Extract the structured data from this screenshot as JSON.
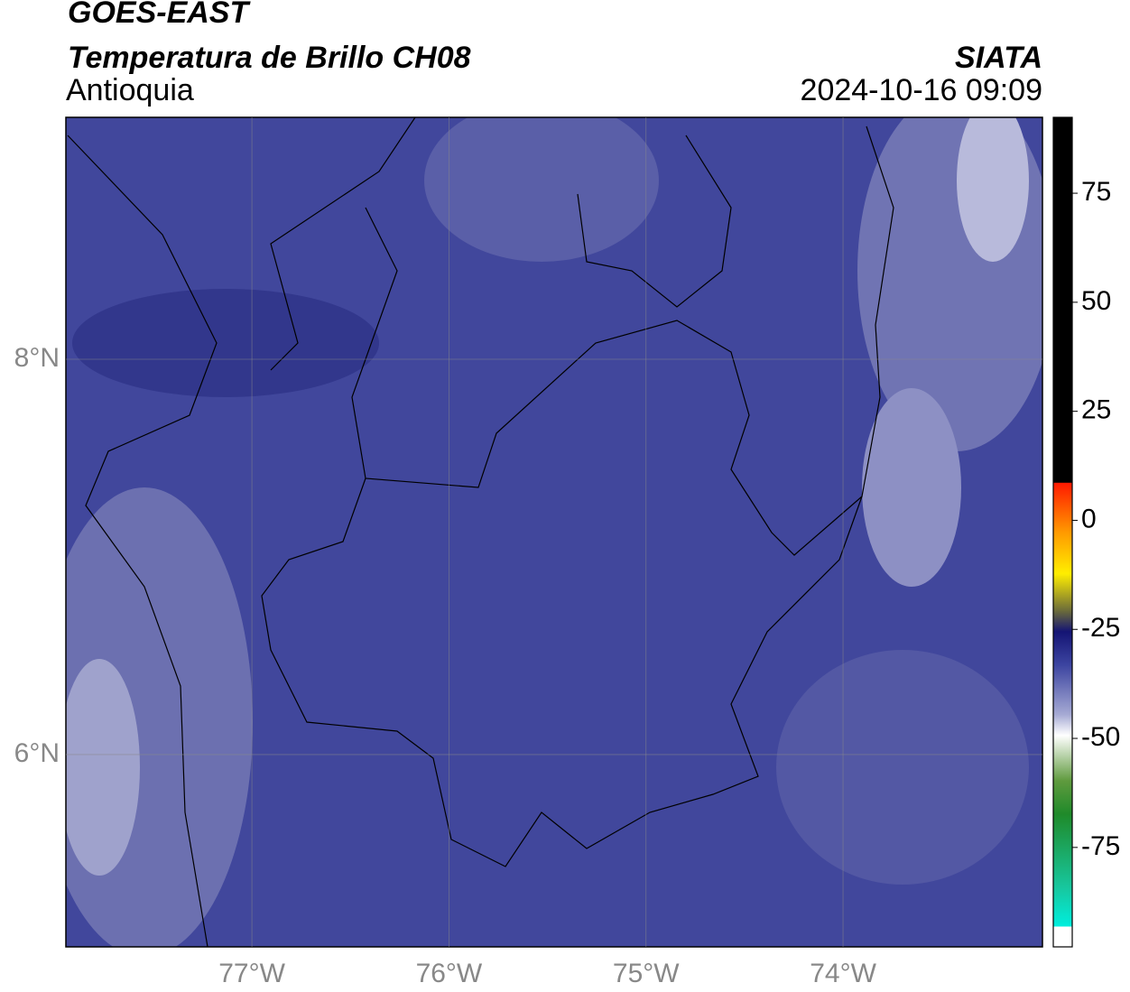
{
  "header": {
    "title": "GOES-EAST",
    "subtitle": "Temperatura de Brillo CH08",
    "region": "Antioquia",
    "source": "SIATA",
    "datetime": "2024-10-16 09:09"
  },
  "map": {
    "xlim": [
      -77.944,
      -72.988
    ],
    "ylim": [
      5.027,
      9.224
    ],
    "xticks": [
      {
        "value": -77,
        "label": "77°W"
      },
      {
        "value": -76,
        "label": "76°W"
      },
      {
        "value": -75,
        "label": "75°W"
      },
      {
        "value": -74,
        "label": "74°W"
      }
    ],
    "yticks": [
      {
        "value": 8,
        "label": "8°N"
      },
      {
        "value": 6,
        "label": "6°N"
      }
    ],
    "grid": true
  },
  "colorbar": {
    "ylim": [
      -97.8,
      92.4
    ],
    "yticks": [
      -75,
      -50,
      -25,
      0,
      25,
      50,
      75
    ]
  }
}
